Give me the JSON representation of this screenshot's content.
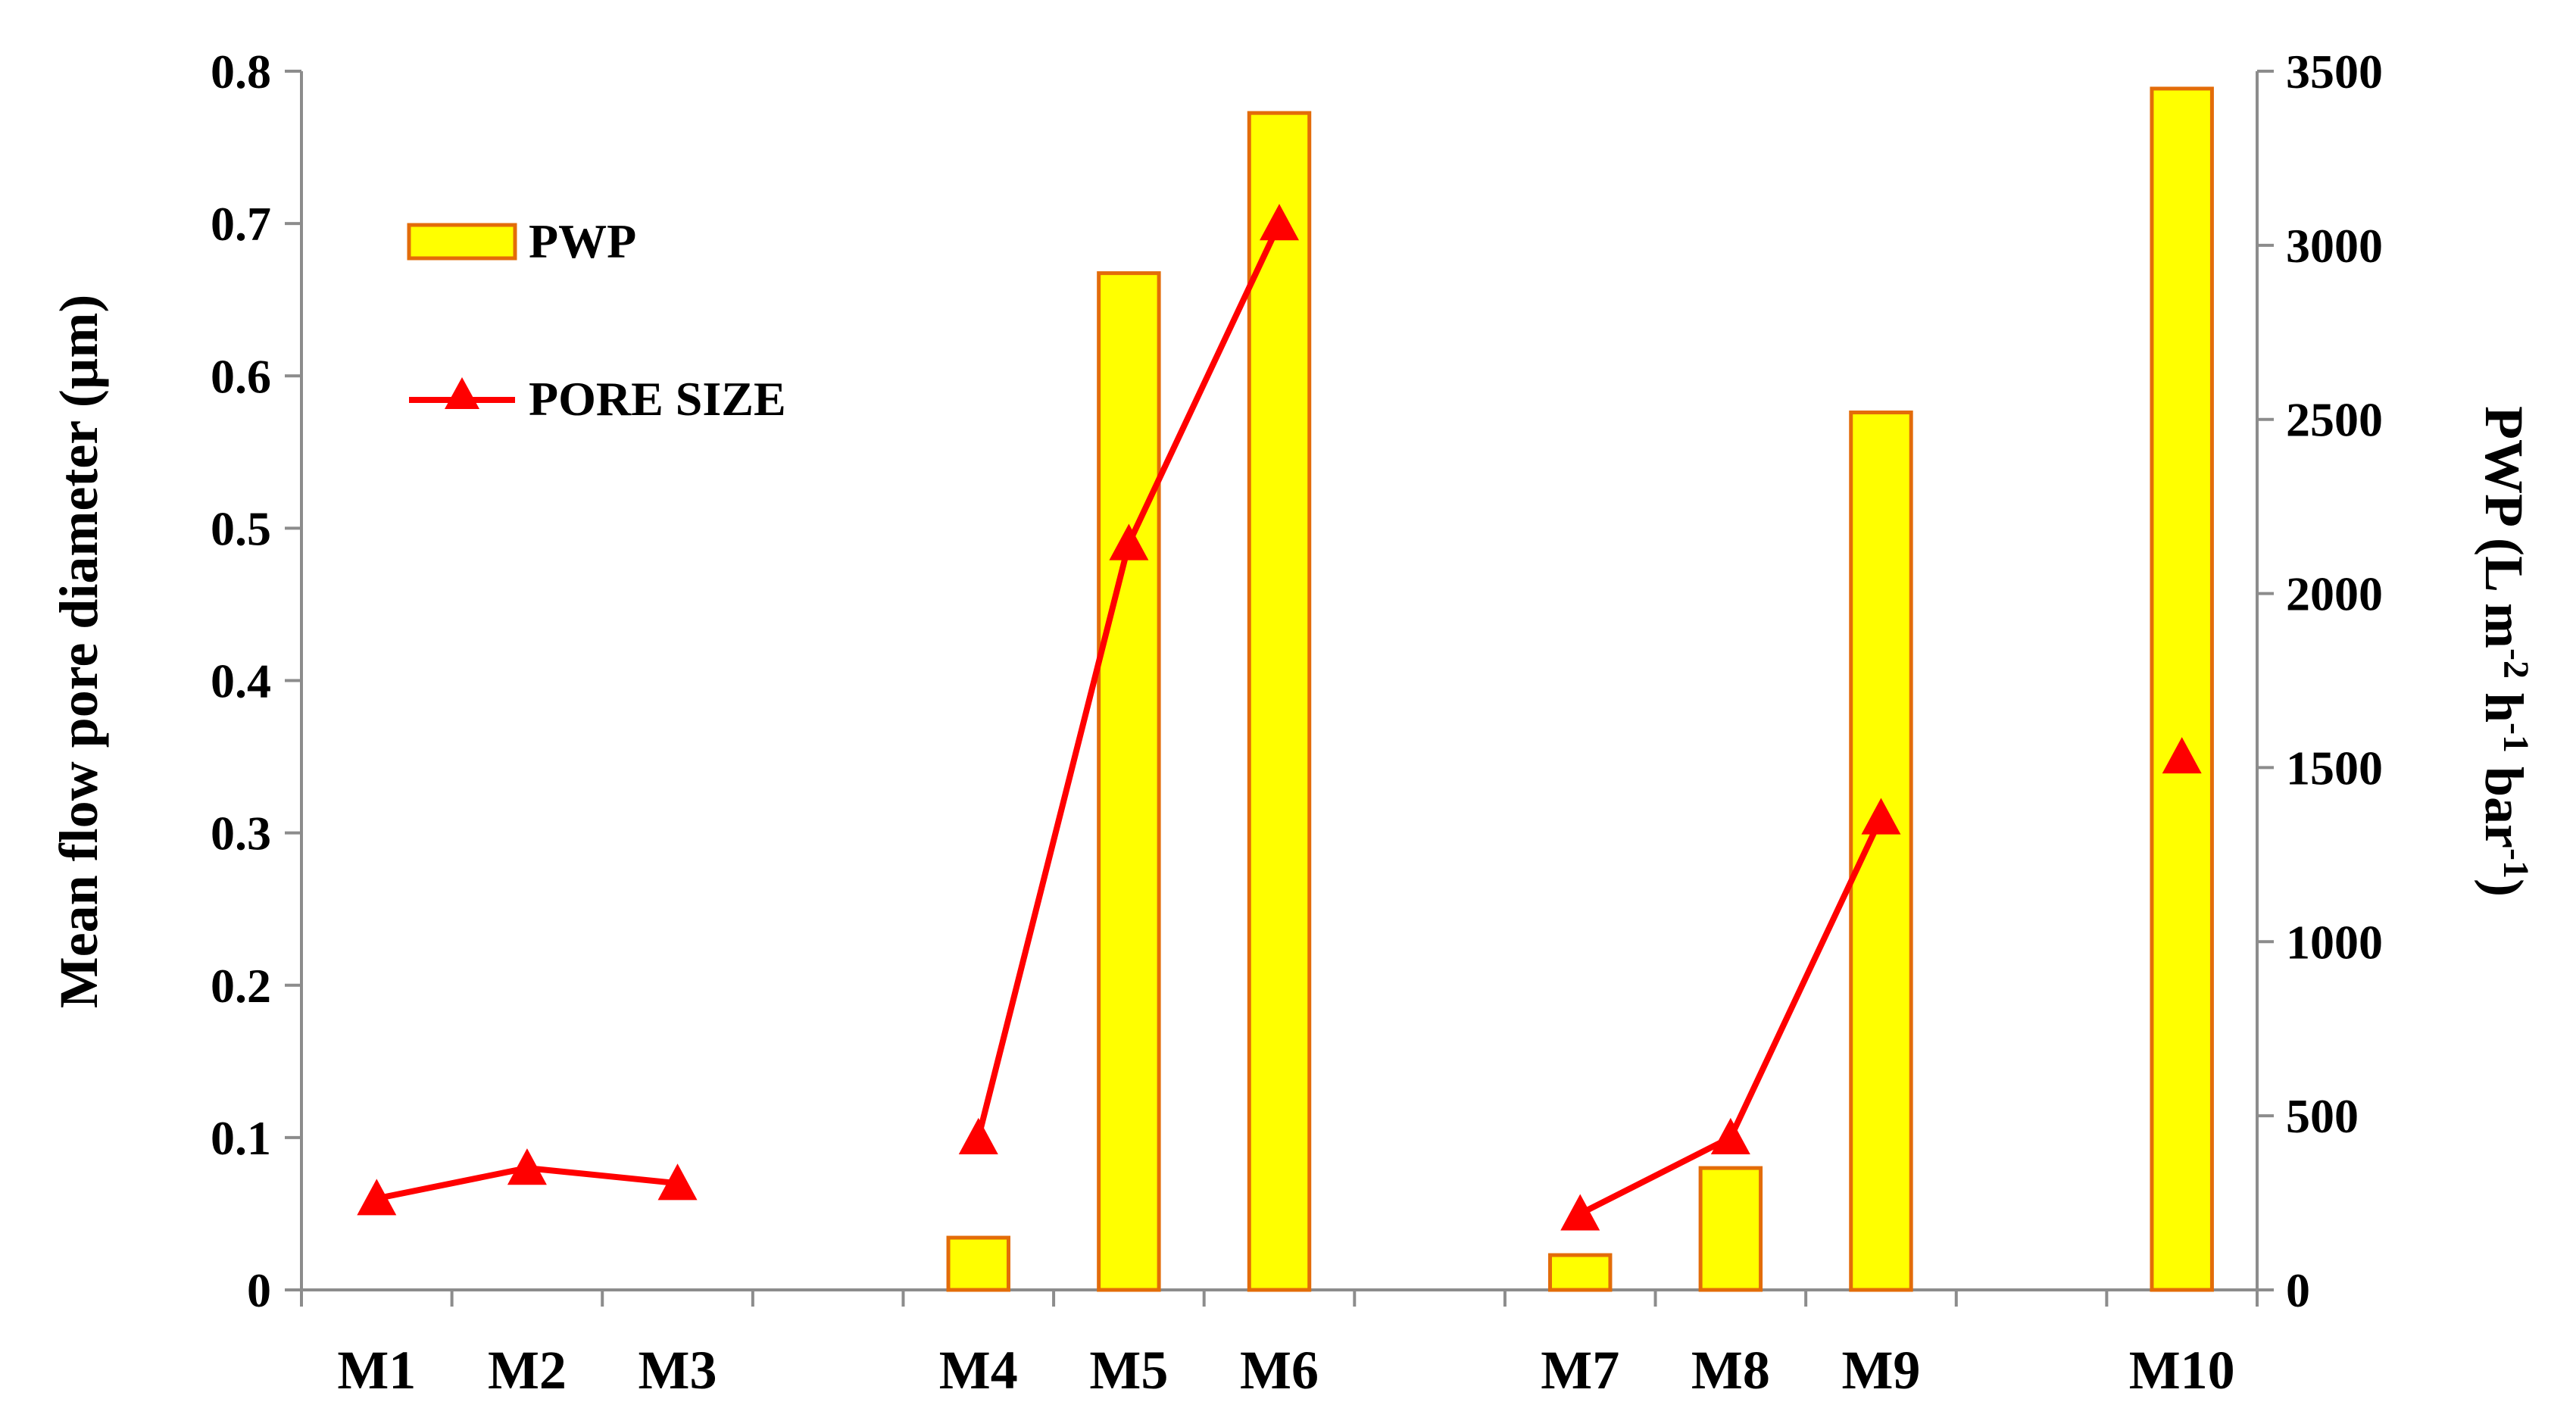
{
  "chart_data": {
    "type": "bar-line-combo",
    "categories": [
      "M1",
      "M2",
      "M3",
      "",
      "M4",
      "M5",
      "M6",
      "",
      "M7",
      "M8",
      "M9",
      "",
      "M10"
    ],
    "series": [
      {
        "name": "PWP",
        "kind": "bar",
        "axis": "right",
        "values": [
          null,
          null,
          null,
          null,
          150,
          2920,
          3380,
          null,
          100,
          350,
          2520,
          null,
          3450
        ],
        "fill": "#ffff00",
        "stroke": "#e36c09"
      },
      {
        "name": "PORE SIZE",
        "kind": "line",
        "axis": "left",
        "marker": "triangle",
        "values": [
          0.06,
          0.08,
          0.07,
          null,
          0.1,
          0.49,
          0.7,
          null,
          0.05,
          0.1,
          0.31,
          null,
          0.35
        ],
        "color": "#ff0000"
      }
    ],
    "y_left": {
      "label": "Mean flow pore diameter (µm)",
      "ylim": [
        0,
        0.8
      ],
      "ticks": [
        "0",
        "0.1",
        "0.2",
        "0.3",
        "0.4",
        "0.5",
        "0.6",
        "0.7",
        "0.8"
      ]
    },
    "y_right": {
      "label_parts": [
        "PWP (L m",
        "-2",
        " h",
        "-1",
        " bar",
        "-1",
        ")"
      ],
      "ylim": [
        0,
        3500
      ],
      "ticks": [
        "0",
        "500",
        "1000",
        "1500",
        "2000",
        "2500",
        "3000",
        "3500"
      ]
    },
    "legend": {
      "placement": "top-left",
      "entries": [
        "PWP",
        "PORE SIZE"
      ]
    },
    "grid": false
  }
}
